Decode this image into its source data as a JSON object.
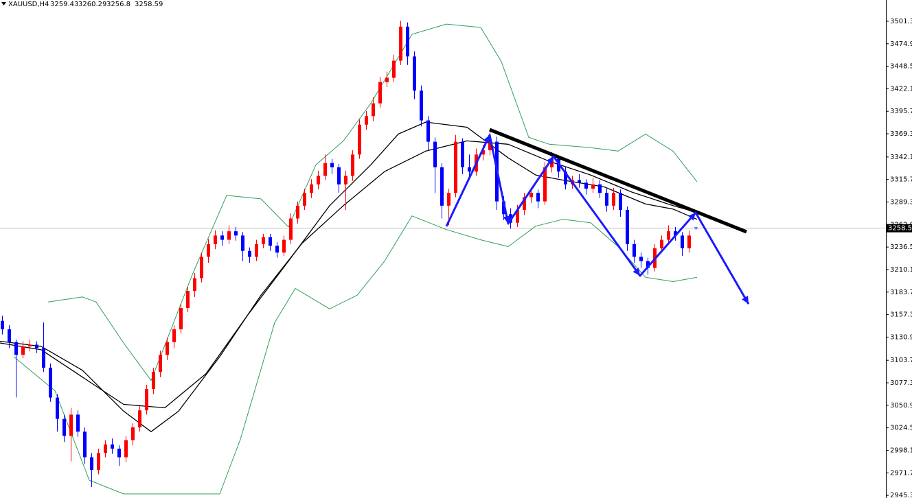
{
  "chart_data": {
    "type": "candlestick",
    "title": "XAUUSD,H4",
    "up_color": "#ff0000",
    "down_color": "#0000ff",
    "xlim": [
      -0.3,
      128.7
    ],
    "ylim": [
      2942.2,
      3526.2
    ],
    "yticks": [
      {
        "value": 3501.3,
        "label": "3501.30"
      },
      {
        "value": 3474.9,
        "label": "3474.90"
      },
      {
        "value": 3448.5,
        "label": "3448.50"
      },
      {
        "value": 3422.1,
        "label": "3422.10"
      },
      {
        "value": 3395.7,
        "label": "3395.70"
      },
      {
        "value": 3369.3,
        "label": "3369.30"
      },
      {
        "value": 3342.1,
        "label": "3342.10"
      },
      {
        "value": 3315.7,
        "label": "3315.70"
      },
      {
        "value": 3289.3,
        "label": "3289.30"
      },
      {
        "value": 3262.9,
        "label": "3262.90"
      },
      {
        "value": 3236.5,
        "label": "3236.50"
      },
      {
        "value": 3210.1,
        "label": "3210.10"
      },
      {
        "value": 3183.7,
        "label": "3183.70"
      },
      {
        "value": 3157.3,
        "label": "3157.30"
      },
      {
        "value": 3130.9,
        "label": "3130.90"
      },
      {
        "value": 3103.7,
        "label": "3103.70"
      },
      {
        "value": 3077.3,
        "label": "3077.30"
      },
      {
        "value": 3050.9,
        "label": "3050.90"
      },
      {
        "value": 3024.5,
        "label": "3024.50"
      },
      {
        "value": 2998.1,
        "label": "2998.10"
      },
      {
        "value": 2971.7,
        "label": "2971.70"
      },
      {
        "value": 2945.3,
        "label": "2945.30"
      }
    ],
    "ohlc": [
      [
        3150,
        3156,
        3134,
        3140
      ],
      [
        3140,
        3145,
        3118,
        3125
      ],
      [
        3125,
        3128,
        3060,
        3110
      ],
      [
        3110,
        3126,
        3106,
        3120
      ],
      [
        3120,
        3128,
        3114,
        3122
      ],
      [
        3122,
        3126,
        3112,
        3118
      ],
      [
        3118,
        3148,
        3090,
        3095
      ],
      [
        3095,
        3100,
        3055,
        3060
      ],
      [
        3060,
        3064,
        3020,
        3035
      ],
      [
        3035,
        3040,
        3008,
        3015
      ],
      [
        3015,
        3048,
        2985,
        3040
      ],
      [
        3040,
        3045,
        3014,
        3020
      ],
      [
        3020,
        3025,
        2982,
        2990
      ],
      [
        2990,
        2995,
        2955,
        2975
      ],
      [
        2975,
        3000,
        2970,
        2995
      ],
      [
        2995,
        3010,
        2990,
        3005
      ],
      [
        3005,
        3012,
        2994,
        3000
      ],
      [
        3000,
        3004,
        2980,
        2990
      ],
      [
        2990,
        3015,
        2984,
        3010
      ],
      [
        3010,
        3030,
        3004,
        3025
      ],
      [
        3025,
        3050,
        3020,
        3045
      ],
      [
        3045,
        3075,
        3040,
        3070
      ],
      [
        3070,
        3095,
        3064,
        3090
      ],
      [
        3090,
        3115,
        3084,
        3110
      ],
      [
        3110,
        3130,
        3104,
        3125
      ],
      [
        3125,
        3145,
        3118,
        3140
      ],
      [
        3140,
        3170,
        3135,
        3165
      ],
      [
        3165,
        3190,
        3160,
        3185
      ],
      [
        3185,
        3206,
        3178,
        3200
      ],
      [
        3200,
        3230,
        3195,
        3225
      ],
      [
        3225,
        3246,
        3218,
        3240
      ],
      [
        3240,
        3256,
        3234,
        3250
      ],
      [
        3250,
        3255,
        3238,
        3245
      ],
      [
        3245,
        3262,
        3240,
        3255
      ],
      [
        3255,
        3260,
        3244,
        3250
      ],
      [
        3250,
        3254,
        3220,
        3232
      ],
      [
        3232,
        3236,
        3218,
        3225
      ],
      [
        3225,
        3245,
        3220,
        3240
      ],
      [
        3240,
        3252,
        3235,
        3248
      ],
      [
        3248,
        3252,
        3232,
        3238
      ],
      [
        3238,
        3242,
        3224,
        3230
      ],
      [
        3230,
        3250,
        3226,
        3245
      ],
      [
        3245,
        3276,
        3240,
        3270
      ],
      [
        3270,
        3290,
        3264,
        3285
      ],
      [
        3285,
        3305,
        3280,
        3300
      ],
      [
        3300,
        3316,
        3294,
        3310
      ],
      [
        3310,
        3326,
        3304,
        3320
      ],
      [
        3320,
        3345,
        3315,
        3335
      ],
      [
        3335,
        3340,
        3322,
        3330
      ],
      [
        3330,
        3334,
        3300,
        3310
      ],
      [
        3310,
        3326,
        3280,
        3320
      ],
      [
        3320,
        3350,
        3314,
        3345
      ],
      [
        3345,
        3386,
        3340,
        3380
      ],
      [
        3380,
        3396,
        3374,
        3390
      ],
      [
        3390,
        3412,
        3384,
        3405
      ],
      [
        3405,
        3436,
        3400,
        3430
      ],
      [
        3430,
        3442,
        3424,
        3435
      ],
      [
        3435,
        3462,
        3430,
        3455
      ],
      [
        3455,
        3502,
        3450,
        3495
      ],
      [
        3495,
        3500,
        3450,
        3460
      ],
      [
        3460,
        3466,
        3410,
        3420
      ],
      [
        3420,
        3426,
        3378,
        3385
      ],
      [
        3385,
        3390,
        3350,
        3360
      ],
      [
        3360,
        3365,
        3300,
        3330
      ],
      [
        3330,
        3335,
        3270,
        3285
      ],
      [
        3285,
        3305,
        3262,
        3300
      ],
      [
        3300,
        3368,
        3295,
        3360
      ],
      [
        3360,
        3364,
        3322,
        3330
      ],
      [
        3330,
        3345,
        3318,
        3325
      ],
      [
        3325,
        3352,
        3320,
        3345
      ],
      [
        3345,
        3356,
        3338,
        3350
      ],
      [
        3350,
        3372,
        3344,
        3360
      ],
      [
        3360,
        3366,
        3280,
        3290
      ],
      [
        3290,
        3296,
        3268,
        3275
      ],
      [
        3275,
        3282,
        3258,
        3265
      ],
      [
        3265,
        3286,
        3260,
        3280
      ],
      [
        3280,
        3300,
        3274,
        3295
      ],
      [
        3295,
        3306,
        3288,
        3300
      ],
      [
        3300,
        3304,
        3282,
        3290
      ],
      [
        3290,
        3336,
        3286,
        3330
      ],
      [
        3330,
        3348,
        3324,
        3340
      ],
      [
        3340,
        3344,
        3318,
        3325
      ],
      [
        3325,
        3330,
        3304,
        3310
      ],
      [
        3310,
        3320,
        3305,
        3315
      ],
      [
        3315,
        3322,
        3306,
        3312
      ],
      [
        3312,
        3316,
        3298,
        3305
      ],
      [
        3305,
        3318,
        3300,
        3310
      ],
      [
        3310,
        3315,
        3294,
        3300
      ],
      [
        3300,
        3305,
        3278,
        3285
      ],
      [
        3285,
        3306,
        3280,
        3300
      ],
      [
        3300,
        3304,
        3272,
        3280
      ],
      [
        3280,
        3284,
        3232,
        3240
      ],
      [
        3240,
        3245,
        3218,
        3225
      ],
      [
        3225,
        3230,
        3212,
        3220
      ],
      [
        3220,
        3224,
        3204,
        3212
      ],
      [
        3212,
        3240,
        3208,
        3235
      ],
      [
        3235,
        3250,
        3230,
        3245
      ],
      [
        3245,
        3262,
        3240,
        3255
      ],
      [
        3255,
        3260,
        3244,
        3250
      ],
      [
        3250,
        3254,
        3226,
        3235
      ],
      [
        3235,
        3256,
        3230,
        3250
      ],
      [
        3259.43,
        3260.29,
        3256.8,
        3258.59
      ]
    ],
    "overlays": [
      {
        "color": "#2e9e5b",
        "width": 1,
        "x": [
          6.7,
          11.7,
          13.7,
          17.7,
          21.7,
          27.7,
          32.7,
          37.7,
          41.7,
          45.7,
          49.7,
          53.7,
          59.7,
          64.7,
          69.7,
          72.7,
          76.7,
          79.7,
          85.7,
          89.7,
          93.7,
          97.7,
          101.2
        ],
        "values": [
          3172,
          3178,
          3172,
          3124,
          3080,
          3204,
          3297,
          3293,
          3260,
          3333,
          3361,
          3405,
          3486,
          3498,
          3494,
          3454,
          3365,
          3357,
          3353,
          3349,
          3369,
          3349,
          3313
        ]
      },
      {
        "color": "#2e9e5b",
        "width": 1,
        "x": [
          1.7,
          7.7,
          12.7,
          17.7,
          24.7,
          31.7,
          34.7,
          39.7,
          42.7,
          47.7,
          51.7,
          55.7,
          59.7,
          64.7,
          69.7,
          73.7,
          77.7,
          81.7,
          85.7,
          89.7,
          93.7,
          97.7,
          101.2
        ],
        "values": [
          3108,
          3068,
          2963,
          2947,
          2947,
          2947,
          3011,
          3148,
          3188,
          3164,
          3180,
          3220,
          3273,
          3257,
          3245,
          3237,
          3261,
          3269,
          3265,
          3237,
          3201,
          3196,
          3201
        ]
      },
      {
        "color": "#000000",
        "width": 1.3,
        "x": [
          -0.3,
          5.7,
          11.7,
          17.7,
          23.7,
          29.7,
          35.7,
          41.7,
          47.7,
          53.7,
          57.7,
          61.7,
          67.7,
          73.7,
          77.7,
          81.7,
          87.7,
          93.7,
          97.7,
          101.2
        ],
        "values": [
          3124,
          3116,
          3084,
          3052,
          3048,
          3088,
          3156,
          3220,
          3285,
          3333,
          3369,
          3383,
          3377,
          3341,
          3321,
          3315,
          3307,
          3287,
          3281,
          3269
        ]
      },
      {
        "color": "#000000",
        "width": 1.3,
        "x": [
          -0.3,
          5.7,
          11.7,
          17.7,
          21.7,
          25.7,
          31.7,
          37.7,
          43.7,
          49.7,
          55.7,
          61.7,
          67.7,
          73.7,
          79.7,
          85.7,
          91.7,
          97.7,
          101.2
        ],
        "values": [
          3126,
          3120,
          3092,
          3044,
          3020,
          3044,
          3108,
          3180,
          3241,
          3285,
          3325,
          3349,
          3361,
          3357,
          3337,
          3321,
          3301,
          3285,
          3277
        ]
      }
    ],
    "annotations": [
      {
        "color": "#000000",
        "width": 5,
        "arrowheads": false,
        "x": [
          71,
          108.4
        ],
        "values": [
          3374.2,
          3254.3
        ]
      },
      {
        "color": "#1a1aff",
        "width": 3,
        "arrowheads": true,
        "x": [
          64.7,
          71,
          73.7,
          80.3,
          92.9,
          101,
          108.7
        ],
        "values": [
          3260.8,
          3367.8,
          3264,
          3342.8,
          3202.8,
          3276.8,
          3169.8
        ]
      }
    ]
  }
}
